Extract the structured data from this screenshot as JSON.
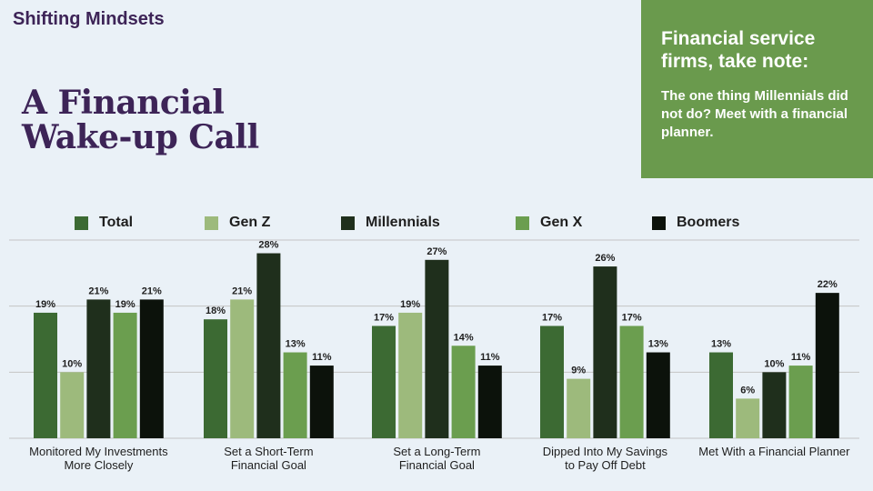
{
  "header": {
    "kicker": "Shifting Mindsets",
    "title_line1": "A Financial",
    "title_line2": "Wake-up Call"
  },
  "callout": {
    "title": "Financial service firms, take note:",
    "body": "The one thing Millennials did not do? Meet with a financial planner."
  },
  "colors": {
    "background": "#eaf1f7",
    "title": "#3d2457",
    "callout_bg": "#6a9a4d",
    "grid": "#c4c4c4"
  },
  "chart_data": {
    "type": "bar",
    "categories": [
      [
        "Monitored My Investments",
        "More Closely"
      ],
      [
        "Set a Short-Term",
        "Financial Goal"
      ],
      [
        "Set a Long-Term",
        "Financial Goal"
      ],
      [
        "Dipped Into My Savings",
        "to Pay Off Debt"
      ],
      [
        "Met With a Financial Planner"
      ]
    ],
    "series": [
      {
        "name": "Total",
        "color": "#3c6a33",
        "values": [
          19,
          18,
          17,
          17,
          13
        ]
      },
      {
        "name": "Gen Z",
        "color": "#9dba7c",
        "values": [
          10,
          21,
          19,
          9,
          6
        ]
      },
      {
        "name": "Millennials",
        "color": "#1f2f1c",
        "values": [
          21,
          28,
          27,
          26,
          10
        ]
      },
      {
        "name": "Gen X",
        "color": "#6b9e4f",
        "values": [
          19,
          13,
          14,
          17,
          11
        ]
      },
      {
        "name": "Boomers",
        "color": "#0c120b",
        "values": [
          21,
          11,
          11,
          13,
          22
        ]
      }
    ],
    "value_suffix": "%",
    "ylim": [
      0,
      30
    ],
    "gridlines": [
      0,
      10,
      20,
      30
    ],
    "grid": true,
    "legend_position": "top"
  }
}
